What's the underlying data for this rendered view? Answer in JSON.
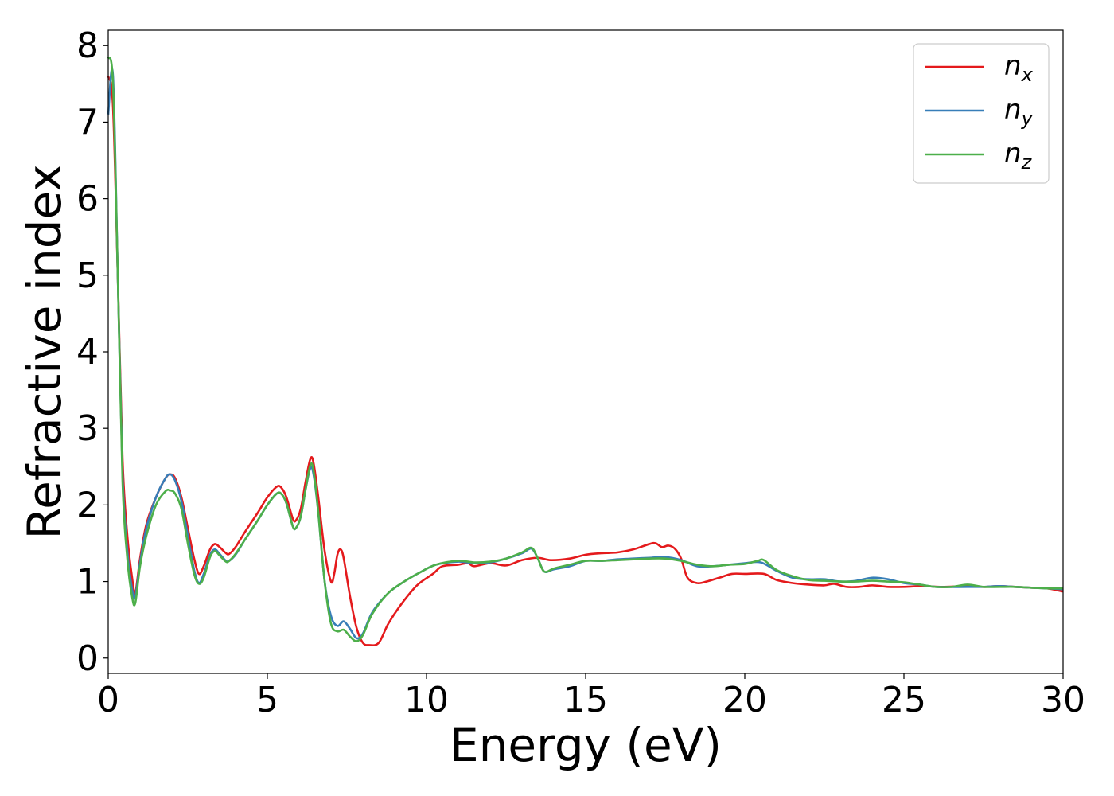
{
  "chart_data": {
    "type": "line",
    "title": "",
    "xlabel": "Energy (eV)",
    "ylabel": "Refractive index",
    "xlim": [
      0,
      30
    ],
    "ylim": [
      -0.2,
      8.2
    ],
    "xticks": [
      0,
      5,
      10,
      15,
      20,
      25,
      30
    ],
    "yticks": [
      0,
      1,
      2,
      3,
      4,
      5,
      6,
      7,
      8
    ],
    "grid": false,
    "legend_position": "top-right",
    "series": [
      {
        "name": "n",
        "subscript": "x",
        "color": "#e41a1c",
        "points": [
          [
            0,
            7.6
          ],
          [
            0.15,
            7.2
          ],
          [
            0.3,
            5.0
          ],
          [
            0.45,
            2.6
          ],
          [
            0.6,
            1.6
          ],
          [
            0.75,
            1.05
          ],
          [
            0.85,
            0.85
          ],
          [
            1.0,
            1.3
          ],
          [
            1.2,
            1.75
          ],
          [
            1.5,
            2.1
          ],
          [
            1.8,
            2.35
          ],
          [
            1.95,
            2.4
          ],
          [
            2.1,
            2.35
          ],
          [
            2.3,
            2.1
          ],
          [
            2.5,
            1.7
          ],
          [
            2.7,
            1.3
          ],
          [
            2.85,
            1.1
          ],
          [
            3.0,
            1.2
          ],
          [
            3.2,
            1.42
          ],
          [
            3.35,
            1.49
          ],
          [
            3.5,
            1.45
          ],
          [
            3.7,
            1.37
          ],
          [
            3.8,
            1.36
          ],
          [
            4.0,
            1.45
          ],
          [
            4.3,
            1.65
          ],
          [
            4.7,
            1.9
          ],
          [
            5.0,
            2.1
          ],
          [
            5.3,
            2.24
          ],
          [
            5.45,
            2.22
          ],
          [
            5.6,
            2.1
          ],
          [
            5.8,
            1.82
          ],
          [
            5.9,
            1.8
          ],
          [
            6.05,
            1.95
          ],
          [
            6.2,
            2.3
          ],
          [
            6.35,
            2.6
          ],
          [
            6.45,
            2.55
          ],
          [
            6.6,
            2.1
          ],
          [
            6.8,
            1.4
          ],
          [
            7.0,
            1.0
          ],
          [
            7.1,
            1.1
          ],
          [
            7.2,
            1.35
          ],
          [
            7.3,
            1.42
          ],
          [
            7.4,
            1.3
          ],
          [
            7.6,
            0.8
          ],
          [
            7.8,
            0.4
          ],
          [
            8.0,
            0.2
          ],
          [
            8.2,
            0.17
          ],
          [
            8.5,
            0.2
          ],
          [
            8.8,
            0.45
          ],
          [
            9.2,
            0.7
          ],
          [
            9.7,
            0.95
          ],
          [
            10.2,
            1.1
          ],
          [
            10.5,
            1.2
          ],
          [
            11.0,
            1.22
          ],
          [
            11.3,
            1.24
          ],
          [
            11.5,
            1.2
          ],
          [
            12.0,
            1.24
          ],
          [
            12.5,
            1.21
          ],
          [
            13.0,
            1.28
          ],
          [
            13.5,
            1.31
          ],
          [
            13.9,
            1.28
          ],
          [
            14.5,
            1.3
          ],
          [
            15.0,
            1.35
          ],
          [
            15.5,
            1.37
          ],
          [
            16.0,
            1.38
          ],
          [
            16.5,
            1.42
          ],
          [
            17.0,
            1.49
          ],
          [
            17.2,
            1.5
          ],
          [
            17.4,
            1.45
          ],
          [
            17.6,
            1.47
          ],
          [
            17.8,
            1.43
          ],
          [
            18.0,
            1.3
          ],
          [
            18.2,
            1.05
          ],
          [
            18.5,
            0.98
          ],
          [
            18.8,
            1.0
          ],
          [
            19.2,
            1.05
          ],
          [
            19.6,
            1.1
          ],
          [
            20.0,
            1.1
          ],
          [
            20.6,
            1.1
          ],
          [
            21.0,
            1.02
          ],
          [
            21.5,
            0.98
          ],
          [
            22.0,
            0.96
          ],
          [
            22.5,
            0.95
          ],
          [
            22.8,
            0.97
          ],
          [
            23.2,
            0.93
          ],
          [
            23.6,
            0.93
          ],
          [
            24.0,
            0.95
          ],
          [
            24.5,
            0.93
          ],
          [
            25.0,
            0.93
          ],
          [
            25.6,
            0.94
          ],
          [
            26.2,
            0.93
          ],
          [
            27.0,
            0.94
          ],
          [
            27.5,
            0.93
          ],
          [
            28.0,
            0.94
          ],
          [
            28.5,
            0.93
          ],
          [
            29.0,
            0.92
          ],
          [
            29.5,
            0.91
          ],
          [
            30.0,
            0.87
          ]
        ]
      },
      {
        "name": "n",
        "subscript": "y",
        "color": "#377eb8",
        "points": [
          [
            0,
            7.1
          ],
          [
            0.15,
            7.6
          ],
          [
            0.3,
            5.0
          ],
          [
            0.45,
            2.4
          ],
          [
            0.6,
            1.4
          ],
          [
            0.75,
            0.9
          ],
          [
            0.85,
            0.8
          ],
          [
            1.0,
            1.25
          ],
          [
            1.2,
            1.7
          ],
          [
            1.5,
            2.1
          ],
          [
            1.8,
            2.35
          ],
          [
            1.95,
            2.4
          ],
          [
            2.1,
            2.32
          ],
          [
            2.3,
            2.05
          ],
          [
            2.5,
            1.6
          ],
          [
            2.7,
            1.15
          ],
          [
            2.85,
            0.98
          ],
          [
            3.0,
            1.1
          ],
          [
            3.2,
            1.35
          ],
          [
            3.35,
            1.42
          ],
          [
            3.5,
            1.36
          ],
          [
            3.7,
            1.27
          ],
          [
            3.8,
            1.27
          ],
          [
            4.0,
            1.35
          ],
          [
            4.3,
            1.55
          ],
          [
            4.7,
            1.8
          ],
          [
            5.0,
            2.0
          ],
          [
            5.3,
            2.15
          ],
          [
            5.45,
            2.14
          ],
          [
            5.6,
            2.02
          ],
          [
            5.8,
            1.72
          ],
          [
            5.9,
            1.7
          ],
          [
            6.05,
            1.85
          ],
          [
            6.2,
            2.2
          ],
          [
            6.35,
            2.48
          ],
          [
            6.45,
            2.4
          ],
          [
            6.6,
            1.9
          ],
          [
            6.8,
            1.0
          ],
          [
            7.0,
            0.55
          ],
          [
            7.2,
            0.42
          ],
          [
            7.4,
            0.48
          ],
          [
            7.6,
            0.38
          ],
          [
            7.8,
            0.26
          ],
          [
            8.0,
            0.32
          ],
          [
            8.3,
            0.6
          ],
          [
            8.8,
            0.85
          ],
          [
            9.3,
            1.0
          ],
          [
            9.8,
            1.12
          ],
          [
            10.3,
            1.22
          ],
          [
            11.0,
            1.26
          ],
          [
            11.5,
            1.24
          ],
          [
            12.0,
            1.25
          ],
          [
            12.5,
            1.3
          ],
          [
            13.0,
            1.37
          ],
          [
            13.3,
            1.43
          ],
          [
            13.5,
            1.3
          ],
          [
            13.7,
            1.13
          ],
          [
            14.0,
            1.16
          ],
          [
            14.5,
            1.2
          ],
          [
            15.0,
            1.27
          ],
          [
            15.5,
            1.27
          ],
          [
            16.0,
            1.29
          ],
          [
            16.5,
            1.3
          ],
          [
            17.0,
            1.31
          ],
          [
            17.5,
            1.32
          ],
          [
            18.0,
            1.28
          ],
          [
            18.5,
            1.2
          ],
          [
            19.0,
            1.2
          ],
          [
            19.5,
            1.22
          ],
          [
            20.0,
            1.24
          ],
          [
            20.5,
            1.25
          ],
          [
            21.0,
            1.14
          ],
          [
            21.5,
            1.05
          ],
          [
            22.0,
            1.03
          ],
          [
            22.5,
            1.03
          ],
          [
            23.0,
            1.0
          ],
          [
            23.5,
            1.01
          ],
          [
            24.0,
            1.05
          ],
          [
            24.5,
            1.03
          ],
          [
            25.0,
            0.98
          ],
          [
            25.5,
            0.96
          ],
          [
            26.0,
            0.93
          ],
          [
            27.0,
            0.93
          ],
          [
            27.5,
            0.93
          ],
          [
            28.0,
            0.94
          ],
          [
            28.5,
            0.93
          ],
          [
            29.0,
            0.92
          ],
          [
            29.5,
            0.91
          ],
          [
            30.0,
            0.9
          ]
        ]
      },
      {
        "name": "n",
        "subscript": "z",
        "color": "#4daf4a",
        "points": [
          [
            0,
            7.85
          ],
          [
            0.15,
            7.5
          ],
          [
            0.3,
            5.0
          ],
          [
            0.45,
            2.3
          ],
          [
            0.6,
            1.3
          ],
          [
            0.75,
            0.8
          ],
          [
            0.85,
            0.72
          ],
          [
            1.0,
            1.2
          ],
          [
            1.2,
            1.6
          ],
          [
            1.5,
            2.0
          ],
          [
            1.8,
            2.18
          ],
          [
            1.95,
            2.19
          ],
          [
            2.1,
            2.15
          ],
          [
            2.3,
            1.95
          ],
          [
            2.5,
            1.5
          ],
          [
            2.7,
            1.1
          ],
          [
            2.85,
            0.97
          ],
          [
            3.0,
            1.05
          ],
          [
            3.2,
            1.32
          ],
          [
            3.35,
            1.4
          ],
          [
            3.5,
            1.34
          ],
          [
            3.7,
            1.26
          ],
          [
            3.8,
            1.27
          ],
          [
            4.0,
            1.36
          ],
          [
            4.3,
            1.55
          ],
          [
            4.7,
            1.8
          ],
          [
            5.0,
            2.0
          ],
          [
            5.3,
            2.15
          ],
          [
            5.45,
            2.14
          ],
          [
            5.6,
            2.02
          ],
          [
            5.8,
            1.72
          ],
          [
            5.9,
            1.7
          ],
          [
            6.05,
            1.85
          ],
          [
            6.2,
            2.2
          ],
          [
            6.35,
            2.52
          ],
          [
            6.45,
            2.45
          ],
          [
            6.6,
            1.9
          ],
          [
            6.8,
            1.0
          ],
          [
            7.0,
            0.45
          ],
          [
            7.2,
            0.35
          ],
          [
            7.4,
            0.37
          ],
          [
            7.6,
            0.28
          ],
          [
            7.8,
            0.22
          ],
          [
            8.0,
            0.3
          ],
          [
            8.3,
            0.58
          ],
          [
            8.8,
            0.85
          ],
          [
            9.3,
            1.0
          ],
          [
            9.8,
            1.12
          ],
          [
            10.3,
            1.22
          ],
          [
            11.0,
            1.27
          ],
          [
            11.5,
            1.25
          ],
          [
            12.0,
            1.26
          ],
          [
            12.5,
            1.3
          ],
          [
            13.0,
            1.38
          ],
          [
            13.3,
            1.44
          ],
          [
            13.5,
            1.3
          ],
          [
            13.7,
            1.13
          ],
          [
            14.0,
            1.17
          ],
          [
            14.5,
            1.22
          ],
          [
            15.0,
            1.27
          ],
          [
            15.5,
            1.27
          ],
          [
            16.0,
            1.28
          ],
          [
            16.5,
            1.29
          ],
          [
            17.0,
            1.3
          ],
          [
            17.5,
            1.3
          ],
          [
            18.0,
            1.27
          ],
          [
            18.5,
            1.22
          ],
          [
            19.0,
            1.2
          ],
          [
            19.5,
            1.22
          ],
          [
            20.0,
            1.23
          ],
          [
            20.4,
            1.27
          ],
          [
            20.6,
            1.28
          ],
          [
            21.0,
            1.15
          ],
          [
            21.5,
            1.07
          ],
          [
            22.0,
            1.02
          ],
          [
            22.5,
            1.01
          ],
          [
            23.0,
            1.0
          ],
          [
            23.5,
            1.0
          ],
          [
            24.0,
            1.01
          ],
          [
            24.5,
            1.0
          ],
          [
            25.0,
            0.99
          ],
          [
            25.5,
            0.96
          ],
          [
            26.0,
            0.93
          ],
          [
            26.5,
            0.93
          ],
          [
            27.0,
            0.96
          ],
          [
            27.5,
            0.93
          ],
          [
            28.0,
            0.93
          ],
          [
            28.5,
            0.93
          ],
          [
            29.0,
            0.92
          ],
          [
            29.5,
            0.91
          ],
          [
            30.0,
            0.91
          ]
        ]
      }
    ]
  }
}
